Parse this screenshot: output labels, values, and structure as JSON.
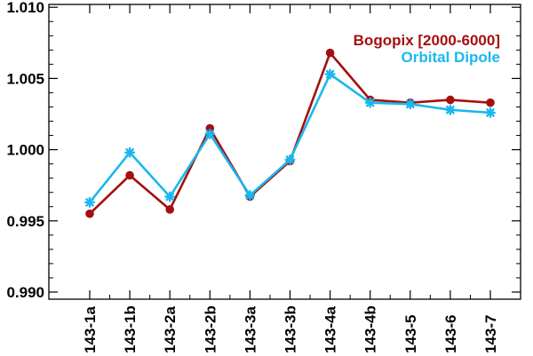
{
  "chart_data": {
    "type": "line",
    "categories": [
      "143-1a",
      "143-1b",
      "143-2a",
      "143-2b",
      "143-3a",
      "143-3b",
      "143-4a",
      "143-4b",
      "143-5",
      "143-6",
      "143-7"
    ],
    "series": [
      {
        "name": "Bogopix [2000-6000]",
        "color": "#a50f0f",
        "marker": "circle",
        "values": [
          0.9955,
          0.9982,
          0.9958,
          1.0015,
          0.9967,
          0.9992,
          1.0068,
          1.0035,
          1.0033,
          1.0035,
          1.0033
        ]
      },
      {
        "name": "Orbital Dipole",
        "color": "#1ab8ee",
        "marker": "asterisk",
        "values": [
          0.9963,
          0.9998,
          0.9967,
          1.0011,
          0.9968,
          0.9993,
          1.0053,
          1.0033,
          1.0032,
          1.0028,
          1.0026
        ]
      }
    ],
    "ylim": [
      0.9895,
      1.0102
    ],
    "yticks": [
      {
        "value": 0.99,
        "label": "0.990"
      },
      {
        "value": 0.995,
        "label": "0.995"
      },
      {
        "value": 1.0,
        "label": "1.000"
      },
      {
        "value": 1.005,
        "label": "1.005"
      },
      {
        "value": 1.01,
        "label": "1.010"
      }
    ],
    "legend_position": "top-right",
    "grid": false
  }
}
